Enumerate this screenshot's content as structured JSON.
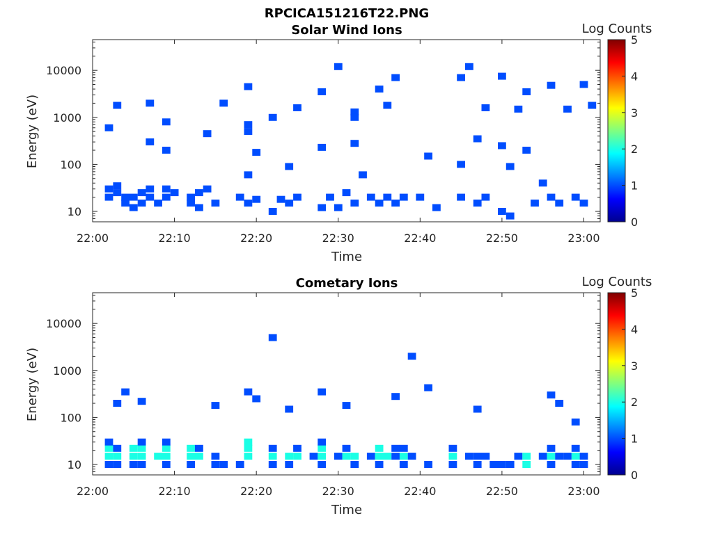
{
  "figure_title": "RPCICA151216T22.PNG",
  "chart_data": [
    {
      "type": "heatmap",
      "title": "Solar Wind Ions",
      "xlabel": "Time",
      "ylabel": "Energy (eV)",
      "y_scale": "log",
      "ylim": [
        6,
        45000
      ],
      "xlim": [
        "22:00",
        "23:02"
      ],
      "x_ticks": [
        "22:00",
        "22:10",
        "22:20",
        "22:30",
        "22:40",
        "22:50",
        "23:00"
      ],
      "y_ticks": [
        "10",
        "100",
        "1000",
        "10000"
      ],
      "colorbar": {
        "label": "Log Counts",
        "range": [
          0,
          5
        ],
        "ticks": [
          "0",
          "1",
          "2",
          "3",
          "4",
          "5"
        ],
        "colormap": "jet"
      },
      "cells": [
        [
          "22:02",
          20,
          1
        ],
        [
          "22:02",
          30,
          1
        ],
        [
          "22:03",
          25,
          1
        ],
        [
          "22:03",
          35,
          1
        ],
        [
          "22:04",
          15,
          1
        ],
        [
          "22:04",
          20,
          1
        ],
        [
          "22:05",
          20,
          1
        ],
        [
          "22:05",
          12,
          1
        ],
        [
          "22:06",
          15,
          1
        ],
        [
          "22:06",
          25,
          1
        ],
        [
          "22:07",
          20,
          1
        ],
        [
          "22:07",
          30,
          1
        ],
        [
          "22:08",
          15,
          1
        ],
        [
          "22:09",
          20,
          1
        ],
        [
          "22:09",
          30,
          1
        ],
        [
          "22:10",
          25,
          1
        ],
        [
          "22:12",
          20,
          1
        ],
        [
          "22:12",
          15,
          1
        ],
        [
          "22:13",
          25,
          1
        ],
        [
          "22:13",
          12,
          1
        ],
        [
          "22:14",
          30,
          1
        ],
        [
          "22:15",
          15,
          1
        ],
        [
          "22:18",
          20,
          1
        ],
        [
          "22:19",
          15,
          1
        ],
        [
          "22:19",
          60,
          1
        ],
        [
          "22:20",
          18,
          1
        ],
        [
          "22:22",
          10,
          1
        ],
        [
          "22:23",
          18,
          1
        ],
        [
          "22:24",
          15,
          1
        ],
        [
          "22:25",
          20,
          1
        ],
        [
          "22:28",
          12,
          1
        ],
        [
          "22:29",
          20,
          1
        ],
        [
          "22:30",
          12,
          1
        ],
        [
          "22:31",
          25,
          1
        ],
        [
          "22:32",
          15,
          1
        ],
        [
          "22:34",
          20,
          1
        ],
        [
          "22:35",
          15,
          1
        ],
        [
          "22:36",
          20,
          1
        ],
        [
          "22:37",
          15,
          1
        ],
        [
          "22:38",
          20,
          1
        ],
        [
          "22:40",
          20,
          1
        ],
        [
          "22:42",
          12,
          1
        ],
        [
          "22:45",
          20,
          1
        ],
        [
          "22:47",
          15,
          1
        ],
        [
          "22:48",
          20,
          1
        ],
        [
          "22:50",
          10,
          1
        ],
        [
          "22:51",
          8,
          1
        ],
        [
          "22:54",
          15,
          1
        ],
        [
          "22:56",
          20,
          1
        ],
        [
          "22:57",
          15,
          1
        ],
        [
          "22:59",
          20,
          1
        ],
        [
          "23:00",
          15,
          1
        ],
        [
          "22:03",
          1800,
          1
        ],
        [
          "22:07",
          2000,
          1
        ],
        [
          "22:09",
          800,
          1
        ],
        [
          "22:16",
          2000,
          1
        ],
        [
          "22:19",
          4500,
          1
        ],
        [
          "22:19",
          700,
          1
        ],
        [
          "22:19",
          500,
          1
        ],
        [
          "22:22",
          1000,
          1
        ],
        [
          "22:25",
          1600,
          1
        ],
        [
          "22:28",
          3500,
          1
        ],
        [
          "22:30",
          12000,
          1
        ],
        [
          "22:32",
          1300,
          1
        ],
        [
          "22:32",
          1000,
          1
        ],
        [
          "22:35",
          4000,
          1
        ],
        [
          "22:36",
          1800,
          1
        ],
        [
          "22:37",
          7000,
          1
        ],
        [
          "22:45",
          7000,
          1
        ],
        [
          "22:46",
          12000,
          1
        ],
        [
          "22:48",
          1600,
          1
        ],
        [
          "22:50",
          7500,
          1
        ],
        [
          "22:52",
          1500,
          1
        ],
        [
          "22:53",
          3500,
          1
        ],
        [
          "22:56",
          4800,
          1
        ],
        [
          "22:58",
          1500,
          1
        ],
        [
          "23:00",
          5000,
          1
        ],
        [
          "23:01",
          1800,
          1
        ],
        [
          "22:47",
          350,
          1
        ],
        [
          "22:50",
          250,
          1
        ],
        [
          "22:53",
          200,
          1
        ],
        [
          "22:41",
          150,
          1
        ],
        [
          "22:32",
          280,
          1
        ],
        [
          "22:28",
          230,
          1
        ],
        [
          "22:09",
          200,
          1
        ],
        [
          "22:07",
          300,
          1
        ],
        [
          "22:02",
          600,
          1
        ],
        [
          "22:14",
          450,
          1
        ],
        [
          "22:20",
          180,
          1
        ],
        [
          "22:24",
          90,
          1
        ],
        [
          "22:33",
          60,
          1
        ],
        [
          "22:45",
          100,
          1
        ],
        [
          "22:51",
          90,
          1
        ],
        [
          "22:55",
          40,
          1
        ]
      ]
    },
    {
      "type": "heatmap",
      "title": "Cometary Ions",
      "xlabel": "Time",
      "ylabel": "Energy (eV)",
      "y_scale": "log",
      "ylim": [
        6,
        45000
      ],
      "xlim": [
        "22:00",
        "23:02"
      ],
      "x_ticks": [
        "22:00",
        "22:10",
        "22:20",
        "22:30",
        "22:40",
        "22:50",
        "23:00"
      ],
      "y_ticks": [
        "10",
        "100",
        "1000",
        "10000"
      ],
      "colorbar": {
        "label": "Log Counts",
        "range": [
          0,
          5
        ],
        "ticks": [
          "0",
          "1",
          "2",
          "3",
          "4",
          "5"
        ],
        "colormap": "jet"
      },
      "cells": [
        [
          "22:02",
          10,
          1
        ],
        [
          "22:02",
          15,
          2
        ],
        [
          "22:02",
          22,
          2
        ],
        [
          "22:02",
          30,
          1
        ],
        [
          "22:03",
          10,
          1
        ],
        [
          "22:03",
          15,
          2
        ],
        [
          "22:03",
          22,
          1
        ],
        [
          "22:05",
          10,
          1
        ],
        [
          "22:05",
          15,
          2
        ],
        [
          "22:05",
          22,
          2
        ],
        [
          "22:06",
          10,
          1
        ],
        [
          "22:06",
          15,
          2
        ],
        [
          "22:06",
          22,
          2
        ],
        [
          "22:06",
          30,
          1
        ],
        [
          "22:08",
          15,
          2
        ],
        [
          "22:09",
          10,
          1
        ],
        [
          "22:09",
          15,
          2
        ],
        [
          "22:09",
          22,
          2
        ],
        [
          "22:09",
          30,
          1
        ],
        [
          "22:12",
          10,
          1
        ],
        [
          "22:12",
          15,
          2
        ],
        [
          "22:12",
          22,
          2
        ],
        [
          "22:13",
          15,
          2
        ],
        [
          "22:13",
          22,
          1
        ],
        [
          "22:15",
          10,
          1
        ],
        [
          "22:15",
          15,
          1
        ],
        [
          "22:16",
          10,
          1
        ],
        [
          "22:18",
          10,
          1
        ],
        [
          "22:19",
          15,
          2
        ],
        [
          "22:19",
          22,
          2
        ],
        [
          "22:19",
          30,
          2
        ],
        [
          "22:22",
          10,
          1
        ],
        [
          "22:22",
          15,
          2
        ],
        [
          "22:22",
          22,
          1
        ],
        [
          "22:24",
          10,
          1
        ],
        [
          "22:24",
          15,
          2
        ],
        [
          "22:25",
          15,
          2
        ],
        [
          "22:25",
          22,
          1
        ],
        [
          "22:27",
          15,
          1
        ],
        [
          "22:28",
          10,
          1
        ],
        [
          "22:28",
          15,
          2
        ],
        [
          "22:28",
          22,
          2
        ],
        [
          "22:28",
          30,
          1
        ],
        [
          "22:30",
          15,
          1
        ],
        [
          "22:31",
          15,
          2
        ],
        [
          "22:31",
          22,
          1
        ],
        [
          "22:32",
          10,
          1
        ],
        [
          "22:32",
          15,
          2
        ],
        [
          "22:34",
          15,
          1
        ],
        [
          "22:35",
          10,
          1
        ],
        [
          "22:35",
          15,
          2
        ],
        [
          "22:35",
          22,
          2
        ],
        [
          "22:36",
          15,
          2
        ],
        [
          "22:37",
          15,
          1
        ],
        [
          "22:37",
          22,
          1
        ],
        [
          "22:38",
          10,
          1
        ],
        [
          "22:38",
          15,
          2
        ],
        [
          "22:38",
          22,
          1
        ],
        [
          "22:39",
          15,
          1
        ],
        [
          "22:41",
          10,
          1
        ],
        [
          "22:44",
          10,
          1
        ],
        [
          "22:44",
          15,
          2
        ],
        [
          "22:44",
          22,
          1
        ],
        [
          "22:46",
          15,
          1
        ],
        [
          "22:47",
          10,
          1
        ],
        [
          "22:47",
          15,
          1
        ],
        [
          "22:48",
          15,
          1
        ],
        [
          "22:49",
          10,
          1
        ],
        [
          "22:50",
          10,
          1
        ],
        [
          "22:51",
          10,
          1
        ],
        [
          "22:52",
          15,
          1
        ],
        [
          "22:53",
          10,
          2
        ],
        [
          "22:53",
          15,
          2
        ],
        [
          "22:55",
          15,
          1
        ],
        [
          "22:56",
          10,
          1
        ],
        [
          "22:56",
          15,
          2
        ],
        [
          "22:56",
          22,
          1
        ],
        [
          "22:57",
          15,
          1
        ],
        [
          "22:58",
          15,
          1
        ],
        [
          "22:59",
          10,
          1
        ],
        [
          "22:59",
          15,
          2
        ],
        [
          "22:59",
          22,
          1
        ],
        [
          "23:00",
          10,
          1
        ],
        [
          "23:00",
          15,
          1
        ],
        [
          "22:03",
          200,
          1
        ],
        [
          "22:04",
          350,
          1
        ],
        [
          "22:06",
          220,
          1
        ],
        [
          "22:15",
          180,
          1
        ],
        [
          "22:19",
          350,
          1
        ],
        [
          "22:20",
          250,
          1
        ],
        [
          "22:22",
          5000,
          1
        ],
        [
          "22:24",
          150,
          1
        ],
        [
          "22:28",
          350,
          1
        ],
        [
          "22:31",
          180,
          1
        ],
        [
          "22:37",
          280,
          1
        ],
        [
          "22:39",
          2000,
          1
        ],
        [
          "22:41",
          430,
          1
        ],
        [
          "22:47",
          150,
          1
        ],
        [
          "22:56",
          300,
          1
        ],
        [
          "22:57",
          200,
          1
        ],
        [
          "22:59",
          80,
          1
        ]
      ]
    }
  ]
}
